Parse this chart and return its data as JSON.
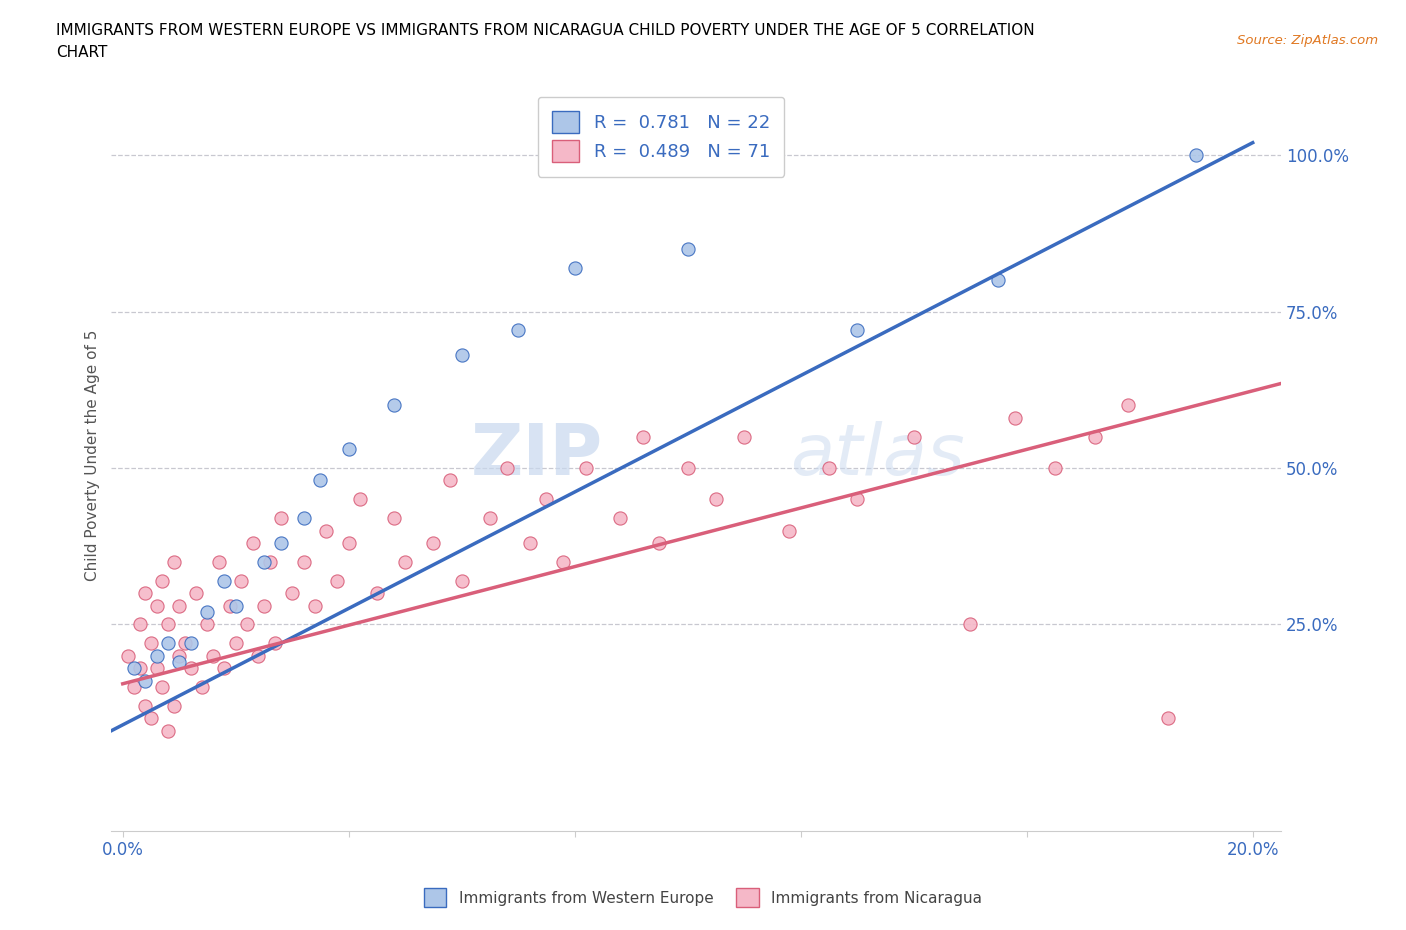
{
  "title_line1": "IMMIGRANTS FROM WESTERN EUROPE VS IMMIGRANTS FROM NICARAGUA CHILD POVERTY UNDER THE AGE OF 5 CORRELATION",
  "title_line2": "CHART",
  "source": "Source: ZipAtlas.com",
  "ylabel": "Child Poverty Under the Age of 5",
  "xlim": [
    -0.002,
    0.205
  ],
  "ylim": [
    -0.08,
    1.12
  ],
  "yticks": [
    0.25,
    0.5,
    0.75,
    1.0
  ],
  "ytick_labels": [
    "25.0%",
    "50.0%",
    "75.0%",
    "100.0%"
  ],
  "xticks": [
    0.0,
    0.04,
    0.08,
    0.12,
    0.16,
    0.2
  ],
  "xtick_labels": [
    "0.0%",
    "",
    "",
    "",
    "",
    "20.0%"
  ],
  "blue_color": "#adc6e8",
  "pink_color": "#f5b8c8",
  "blue_line_color": "#3a6bbf",
  "pink_line_color": "#d95f7a",
  "legend_blue_label": "R =  0.781   N = 22",
  "legend_pink_label": "R =  0.489   N = 71",
  "watermark_zip": "ZIP",
  "watermark_atlas": "atlas",
  "blue_scatter_x": [
    0.002,
    0.004,
    0.006,
    0.008,
    0.01,
    0.012,
    0.015,
    0.018,
    0.02,
    0.025,
    0.028,
    0.032,
    0.035,
    0.04,
    0.048,
    0.06,
    0.07,
    0.08,
    0.1,
    0.13,
    0.155,
    0.19
  ],
  "blue_scatter_y": [
    0.18,
    0.16,
    0.2,
    0.22,
    0.19,
    0.22,
    0.27,
    0.32,
    0.28,
    0.35,
    0.38,
    0.42,
    0.48,
    0.53,
    0.6,
    0.68,
    0.72,
    0.82,
    0.85,
    0.72,
    0.8,
    1.0
  ],
  "blue_line_x0": -0.002,
  "blue_line_x1": 0.2,
  "blue_line_y0": 0.08,
  "blue_line_y1": 1.02,
  "pink_line_x0": 0.0,
  "pink_line_x1": 0.205,
  "pink_line_y0": 0.155,
  "pink_line_y1": 0.635,
  "pink_scatter_x": [
    0.001,
    0.002,
    0.003,
    0.003,
    0.004,
    0.004,
    0.005,
    0.005,
    0.006,
    0.006,
    0.007,
    0.007,
    0.008,
    0.008,
    0.009,
    0.009,
    0.01,
    0.01,
    0.011,
    0.012,
    0.013,
    0.014,
    0.015,
    0.016,
    0.017,
    0.018,
    0.019,
    0.02,
    0.021,
    0.022,
    0.023,
    0.024,
    0.025,
    0.026,
    0.027,
    0.028,
    0.03,
    0.032,
    0.034,
    0.036,
    0.038,
    0.04,
    0.042,
    0.045,
    0.048,
    0.05,
    0.055,
    0.058,
    0.06,
    0.065,
    0.068,
    0.072,
    0.075,
    0.078,
    0.082,
    0.088,
    0.092,
    0.095,
    0.1,
    0.105,
    0.11,
    0.118,
    0.125,
    0.13,
    0.14,
    0.15,
    0.158,
    0.165,
    0.172,
    0.178,
    0.185
  ],
  "pink_scatter_y": [
    0.2,
    0.15,
    0.25,
    0.18,
    0.12,
    0.3,
    0.22,
    0.1,
    0.28,
    0.18,
    0.15,
    0.32,
    0.08,
    0.25,
    0.12,
    0.35,
    0.2,
    0.28,
    0.22,
    0.18,
    0.3,
    0.15,
    0.25,
    0.2,
    0.35,
    0.18,
    0.28,
    0.22,
    0.32,
    0.25,
    0.38,
    0.2,
    0.28,
    0.35,
    0.22,
    0.42,
    0.3,
    0.35,
    0.28,
    0.4,
    0.32,
    0.38,
    0.45,
    0.3,
    0.42,
    0.35,
    0.38,
    0.48,
    0.32,
    0.42,
    0.5,
    0.38,
    0.45,
    0.35,
    0.5,
    0.42,
    0.55,
    0.38,
    0.5,
    0.45,
    0.55,
    0.4,
    0.5,
    0.45,
    0.55,
    0.25,
    0.58,
    0.5,
    0.55,
    0.6,
    0.1
  ]
}
